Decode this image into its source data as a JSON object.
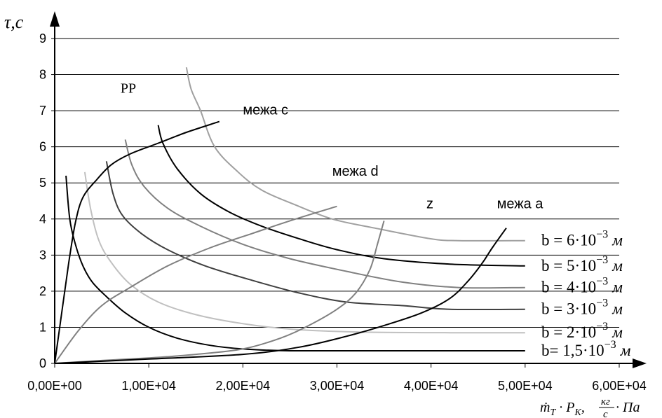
{
  "chart_data": {
    "type": "line",
    "ylabel": "τ,с",
    "xlabel_parts": {
      "mdot": "ṁ",
      "sub_t": "T",
      "dot": " · ",
      "p": "P",
      "sub_k": "K",
      "comma": ", ",
      "num": "кг",
      "den": "с",
      "tail": "·  Па"
    },
    "x_range": [
      0,
      60000
    ],
    "y_range": [
      0,
      9
    ],
    "x_ticks": [
      "0,00E+00",
      "1,00E+04",
      "2,00E+04",
      "3,00E+04",
      "4,00E+04",
      "5,00E+04",
      "6,00E+04"
    ],
    "y_ticks": [
      "0",
      "1",
      "2",
      "3",
      "4",
      "5",
      "6",
      "7",
      "8",
      "9"
    ],
    "grid": {
      "horizontal": true,
      "vertical": false
    },
    "region_labels": [
      {
        "text": "РР",
        "x": 7000,
        "y": 7.5
      },
      {
        "text": "межа с",
        "x": 20000,
        "y": 6.9
      },
      {
        "text": "межа   d",
        "x": 29500,
        "y": 5.2
      },
      {
        "text": "z",
        "x": 39500,
        "y": 4.3
      },
      {
        "text": "межа   а",
        "x": 47000,
        "y": 4.3
      }
    ],
    "series": [
      {
        "name": "b= 1,5·10⁻³ м",
        "label_parts": {
          "b": "b",
          "eq": "= ",
          "coef": "1,5",
          "dot": "·",
          "base": "10",
          "exp": "−3",
          "unit": "м"
        },
        "label_y": 0.35,
        "color": "#000000",
        "points": [
          [
            1200,
            5.2
          ],
          [
            1600,
            4.0
          ],
          [
            2200,
            3.3
          ],
          [
            3000,
            2.7
          ],
          [
            4000,
            2.25
          ],
          [
            5500,
            1.85
          ],
          [
            7500,
            1.4
          ],
          [
            10000,
            1.0
          ],
          [
            13000,
            0.7
          ],
          [
            16500,
            0.5
          ],
          [
            20000,
            0.4
          ],
          [
            25000,
            0.35
          ],
          [
            35000,
            0.35
          ],
          [
            50000,
            0.35
          ]
        ]
      },
      {
        "name": "b = 2·10⁻³ м",
        "label_parts": {
          "b": "b",
          "eq": " = ",
          "coef": "2",
          "dot": "·",
          "base": "10",
          "exp": "−3",
          "unit": "м"
        },
        "label_y": 0.85,
        "color": "#c0c0c0",
        "points": [
          [
            3200,
            5.3
          ],
          [
            3800,
            4.3
          ],
          [
            4700,
            3.4
          ],
          [
            6000,
            2.8
          ],
          [
            8000,
            2.2
          ],
          [
            11000,
            1.7
          ],
          [
            15000,
            1.35
          ],
          [
            20000,
            1.1
          ],
          [
            25000,
            0.95
          ],
          [
            32000,
            0.87
          ],
          [
            42000,
            0.85
          ],
          [
            50000,
            0.85
          ]
        ]
      },
      {
        "name": "b = 3·10⁻³ м",
        "label_parts": {
          "b": "b",
          "eq": " = ",
          "coef": "3",
          "dot": "·",
          "base": "10",
          "exp": "−3",
          "unit": "м"
        },
        "label_y": 1.5,
        "color": "#404040",
        "points": [
          [
            5500,
            5.6
          ],
          [
            6200,
            4.7
          ],
          [
            7200,
            4.1
          ],
          [
            9200,
            3.6
          ],
          [
            12000,
            3.15
          ],
          [
            16000,
            2.7
          ],
          [
            21000,
            2.3
          ],
          [
            26000,
            1.95
          ],
          [
            31000,
            1.7
          ],
          [
            37000,
            1.6
          ],
          [
            42000,
            1.5
          ],
          [
            50000,
            1.5
          ]
        ]
      },
      {
        "name": "b = 4·10⁻³ м",
        "label_parts": {
          "b": "b",
          "eq": " = ",
          "coef": "4",
          "dot": "·",
          "base": "10",
          "exp": "−3",
          "unit": "м"
        },
        "label_y": 2.1,
        "color": "#808080",
        "points": [
          [
            7500,
            6.2
          ],
          [
            8200,
            5.5
          ],
          [
            9500,
            4.9
          ],
          [
            12000,
            4.3
          ],
          [
            15500,
            3.8
          ],
          [
            20000,
            3.3
          ],
          [
            25000,
            2.9
          ],
          [
            31000,
            2.55
          ],
          [
            37000,
            2.25
          ],
          [
            43000,
            2.1
          ],
          [
            50000,
            2.1
          ]
        ]
      },
      {
        "name": "b = 5·10⁻³ м",
        "label_parts": {
          "b": "b",
          "eq": " = ",
          "coef": "5",
          "dot": "·",
          "base": "10",
          "exp": "−3",
          "unit": "м"
        },
        "label_y": 2.7,
        "color": "#000000",
        "points": [
          [
            11000,
            6.6
          ],
          [
            11500,
            6.1
          ],
          [
            13000,
            5.4
          ],
          [
            15500,
            4.7
          ],
          [
            18500,
            4.2
          ],
          [
            22000,
            3.8
          ],
          [
            26000,
            3.45
          ],
          [
            30000,
            3.15
          ],
          [
            35000,
            2.9
          ],
          [
            42000,
            2.75
          ],
          [
            50000,
            2.7
          ]
        ]
      },
      {
        "name": "b = 6·10⁻³ м",
        "label_parts": {
          "b": "b",
          "eq": " = ",
          "coef": "6",
          "dot": "·",
          "base": "10",
          "exp": "−3",
          "unit": "м"
        },
        "label_y": 3.4,
        "color": "#a0a0a0",
        "points": [
          [
            14000,
            8.2
          ],
          [
            14500,
            7.6
          ],
          [
            15500,
            7.0
          ],
          [
            17000,
            6.0
          ],
          [
            19500,
            5.3
          ],
          [
            22000,
            4.8
          ],
          [
            25500,
            4.4
          ],
          [
            29500,
            4.0
          ],
          [
            34000,
            3.75
          ],
          [
            40000,
            3.45
          ],
          [
            43000,
            3.4
          ],
          [
            50000,
            3.4
          ]
        ]
      },
      {
        "name": "межа с",
        "color": "#000000",
        "points": [
          [
            0,
            0
          ],
          [
            800,
            1.5
          ],
          [
            1500,
            2.8
          ],
          [
            2200,
            3.9
          ],
          [
            3000,
            4.6
          ],
          [
            4500,
            5.1
          ],
          [
            6000,
            5.5
          ],
          [
            8000,
            5.8
          ],
          [
            11000,
            6.1
          ],
          [
            14000,
            6.4
          ],
          [
            17500,
            6.7
          ]
        ]
      },
      {
        "name": "межа d",
        "color": "#808080",
        "points": [
          [
            0,
            0
          ],
          [
            2500,
            0.9
          ],
          [
            5000,
            1.6
          ],
          [
            8000,
            2.1
          ],
          [
            12000,
            2.7
          ],
          [
            16500,
            3.2
          ],
          [
            21000,
            3.6
          ],
          [
            25000,
            3.95
          ],
          [
            30000,
            4.35
          ]
        ]
      },
      {
        "name": "z",
        "color": "#808080",
        "points": [
          [
            0,
            0
          ],
          [
            5000,
            0.08
          ],
          [
            10000,
            0.15
          ],
          [
            15000,
            0.25
          ],
          [
            20000,
            0.4
          ],
          [
            24000,
            0.7
          ],
          [
            27000,
            1.05
          ],
          [
            30000,
            1.5
          ],
          [
            32000,
            1.95
          ],
          [
            33500,
            2.6
          ],
          [
            34300,
            3.3
          ],
          [
            35000,
            3.95
          ]
        ]
      },
      {
        "name": "межа а",
        "color": "#000000",
        "points": [
          [
            0,
            0
          ],
          [
            10000,
            0.12
          ],
          [
            20000,
            0.25
          ],
          [
            26000,
            0.45
          ],
          [
            31000,
            0.75
          ],
          [
            35000,
            1.05
          ],
          [
            39000,
            1.4
          ],
          [
            42000,
            1.8
          ],
          [
            44000,
            2.3
          ],
          [
            45500,
            2.8
          ],
          [
            46500,
            3.2
          ],
          [
            48000,
            3.75
          ]
        ]
      }
    ]
  }
}
